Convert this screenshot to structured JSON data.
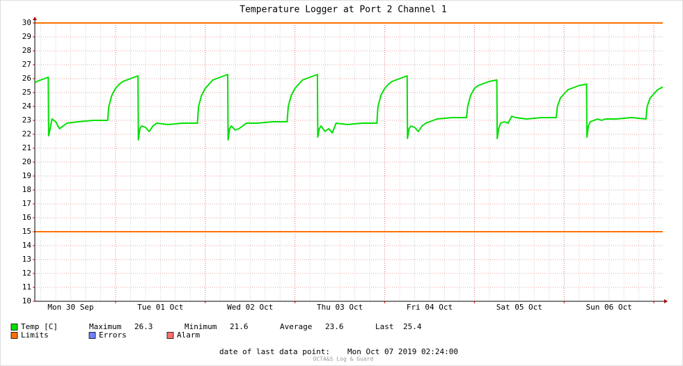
{
  "chart_data": {
    "type": "line",
    "title": "Temperature Logger at Port 2 Channel 1",
    "xlim": [
      2.4,
      170.4
    ],
    "xticks": [
      {
        "value": 12,
        "label": "Mon 30 Sep"
      },
      {
        "value": 36,
        "label": "Tue 01 Oct"
      },
      {
        "value": 60,
        "label": "Wed 02 Oct"
      },
      {
        "value": 84,
        "label": "Thu 03 Oct"
      },
      {
        "value": 108,
        "label": "Fri 04 Oct"
      },
      {
        "value": 132,
        "label": "Sat 05 Oct"
      },
      {
        "value": 156,
        "label": "Sun 06 Oct"
      }
    ],
    "xgrid": [
      24,
      48,
      72,
      96,
      120,
      144,
      168
    ],
    "ylim": [
      10,
      30
    ],
    "yticks": [
      10,
      11,
      12,
      13,
      14,
      15,
      16,
      17,
      18,
      19,
      20,
      21,
      22,
      23,
      24,
      25,
      26,
      27,
      28,
      29,
      30
    ],
    "grid": true,
    "x": [
      2.4,
      3,
      4,
      5,
      6,
      6.1,
      6.5,
      7,
      8,
      9,
      10,
      11,
      14,
      18,
      21.9,
      22.2,
      23,
      24,
      25,
      26,
      28,
      30,
      30.1,
      30.5,
      31,
      32,
      33,
      34,
      35,
      38,
      42,
      45.9,
      46.2,
      47,
      48,
      49,
      50,
      52,
      54,
      54.1,
      54.5,
      55,
      56,
      57,
      58,
      59,
      62,
      66,
      69.9,
      70.2,
      71,
      72,
      73,
      74,
      76,
      78,
      78.1,
      78.5,
      79,
      80,
      81,
      82,
      83,
      86,
      90,
      93.9,
      94.2,
      95,
      96,
      97,
      98,
      100,
      102,
      102.1,
      102.5,
      103,
      104,
      105,
      106,
      107,
      110,
      114,
      117.9,
      118.2,
      119,
      120,
      121,
      122,
      124,
      126,
      126.1,
      126.5,
      127,
      128,
      129,
      130,
      131,
      134,
      138,
      141.9,
      142.2,
      143,
      144,
      145,
      146,
      148,
      150,
      150.1,
      150.5,
      151,
      152,
      153,
      154,
      155,
      158,
      162,
      165.9,
      166.2,
      167,
      168,
      169,
      170.4
    ],
    "series": [
      {
        "name": "Temp [C]",
        "color": "#00e000",
        "values": [
          25.7,
          25.8,
          25.9,
          26.0,
          26.1,
          21.9,
          22.4,
          23.1,
          22.9,
          22.4,
          22.6,
          22.8,
          22.9,
          23.0,
          23.0,
          24.0,
          24.8,
          25.3,
          25.6,
          25.8,
          26.0,
          26.2,
          21.6,
          22.4,
          22.6,
          22.5,
          22.2,
          22.6,
          22.8,
          22.7,
          22.8,
          22.8,
          24.0,
          24.8,
          25.3,
          25.6,
          25.9,
          26.1,
          26.3,
          21.6,
          22.4,
          22.6,
          22.3,
          22.4,
          22.6,
          22.8,
          22.8,
          22.9,
          22.9,
          24.0,
          24.8,
          25.3,
          25.6,
          25.9,
          26.1,
          26.3,
          21.8,
          22.4,
          22.6,
          22.2,
          22.4,
          22.1,
          22.8,
          22.7,
          22.8,
          22.8,
          24.0,
          24.8,
          25.3,
          25.6,
          25.8,
          26.0,
          26.2,
          21.7,
          22.4,
          22.6,
          22.5,
          22.2,
          22.6,
          22.8,
          23.1,
          23.2,
          23.2,
          24.0,
          24.8,
          25.3,
          25.5,
          25.6,
          25.8,
          25.9,
          21.7,
          22.4,
          22.8,
          22.9,
          22.8,
          23.3,
          23.2,
          23.1,
          23.2,
          23.2,
          24.0,
          24.6,
          24.9,
          25.2,
          25.3,
          25.5,
          25.6,
          21.8,
          22.6,
          22.9,
          23.0,
          23.1,
          23.0,
          23.1,
          23.1,
          23.2,
          23.1,
          24.0,
          24.6,
          24.9,
          25.2,
          25.4
        ]
      }
    ],
    "limits": {
      "name": "Limits",
      "color": "#ff7000",
      "values": [
        30,
        15
      ]
    },
    "extra_legend": [
      {
        "name": "Errors",
        "color": "#7080ff"
      },
      {
        "name": "Alarm",
        "color": "#ff7070"
      }
    ],
    "stats": [
      {
        "label": "Maximum",
        "value": 26.3
      },
      {
        "label": "Minimum",
        "value": 21.6
      },
      {
        "label": "Average",
        "value": 23.6
      },
      {
        "label": "Last",
        "value": 25.4
      }
    ],
    "last_point_label": "date of last data point:",
    "last_point_date": "Mon Oct 07 2019 02:24:00",
    "footer": "OCTA&S Log & Guard"
  }
}
